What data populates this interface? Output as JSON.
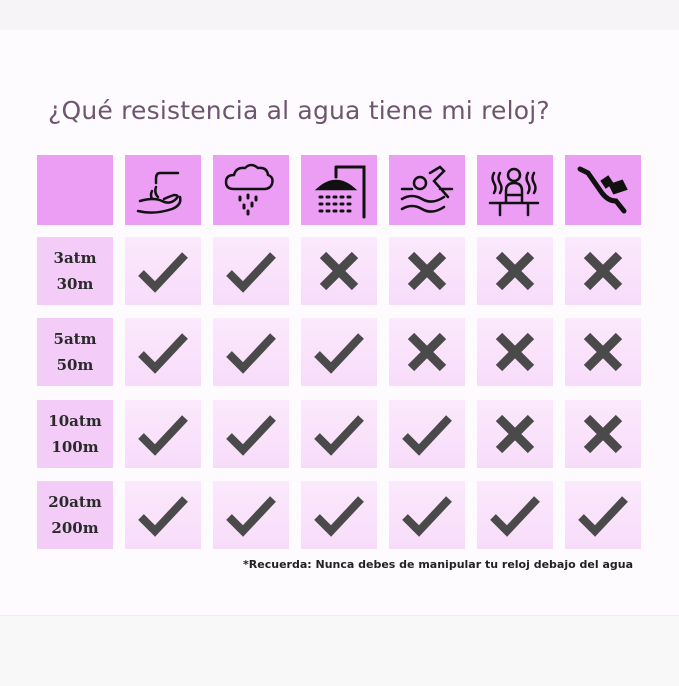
{
  "title": "¿Qué resistencia al agua tiene mi reloj?",
  "colors": {
    "header": "#eb9ef4",
    "label_cell": "#f3cdf7",
    "body_cell": "#f9e3fa",
    "mark": "#4a4a4a",
    "title": "#6e5670"
  },
  "columns": [
    {
      "icon": "hand-washing-icon"
    },
    {
      "icon": "rain-cloud-icon"
    },
    {
      "icon": "shower-icon"
    },
    {
      "icon": "swimming-icon"
    },
    {
      "icon": "sauna-icon"
    },
    {
      "icon": "scuba-diving-icon"
    }
  ],
  "rows": [
    {
      "atm": "3atm",
      "depth": "30m",
      "values": [
        true,
        true,
        false,
        false,
        false,
        false
      ]
    },
    {
      "atm": "5atm",
      "depth": "50m",
      "values": [
        true,
        true,
        true,
        false,
        false,
        false
      ]
    },
    {
      "atm": "10atm",
      "depth": "100m",
      "values": [
        true,
        true,
        true,
        true,
        false,
        false
      ]
    },
    {
      "atm": "20atm",
      "depth": "200m",
      "values": [
        true,
        true,
        true,
        true,
        true,
        true
      ]
    }
  ],
  "footnote": "*Recuerda: Nunca debes de manipular tu reloj debajo del agua"
}
